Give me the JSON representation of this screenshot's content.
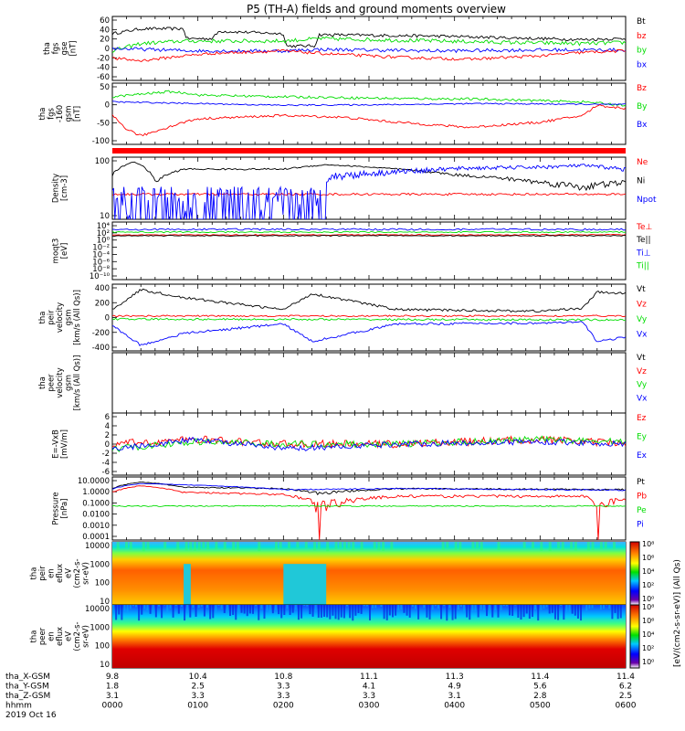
{
  "title": "P5 (TH-A) fields and ground moments overview",
  "panels": [
    {
      "id": "fgs",
      "ylabels": [
        "tha",
        "fgs",
        "gse",
        "[nT]"
      ],
      "yticks": [
        "60",
        "40",
        "20",
        "0",
        "-20",
        "-40",
        "-60"
      ],
      "legend": [
        {
          "t": "Bt",
          "c": "#000000"
        },
        {
          "t": "bz",
          "c": "#ff0000"
        },
        {
          "t": "by",
          "c": "#00dd00"
        },
        {
          "t": "bx",
          "c": "#0000ff"
        }
      ]
    },
    {
      "id": "fgs-gsm",
      "ylabels": [
        "tha",
        "fgs",
        "-160",
        "gsm",
        "[nT]"
      ],
      "yticks": [
        "50",
        "0",
        "-50",
        "-100"
      ],
      "legend": [
        {
          "t": "Bz",
          "c": "#ff0000"
        },
        {
          "t": "By",
          "c": "#00dd00"
        },
        {
          "t": "Bx",
          "c": "#0000ff"
        }
      ]
    },
    {
      "id": "density",
      "ylabels": [
        "Density",
        "[cm-3]"
      ],
      "yticks": [
        "100",
        "10"
      ],
      "legend": [
        {
          "t": "Ne",
          "c": "#ff0000"
        },
        {
          "t": "Ni",
          "c": "#000000"
        },
        {
          "t": "Npot",
          "c": "#0000ff"
        }
      ]
    },
    {
      "id": "temp",
      "ylabels": [
        "moqt3",
        "[eV]"
      ],
      "yticks": [
        "10⁴",
        "10²",
        "10⁰",
        "10⁻²",
        "10⁻⁴",
        "10⁻⁶",
        "10⁻⁸",
        "10⁻¹⁰"
      ],
      "legend": [
        {
          "t": "Te⊥",
          "c": "#ff0000"
        },
        {
          "t": "Te||",
          "c": "#000000"
        },
        {
          "t": "Ti⊥",
          "c": "#0000ff"
        },
        {
          "t": "Ti||",
          "c": "#00dd00"
        }
      ]
    },
    {
      "id": "peir-vel",
      "ylabels": [
        "tha",
        "peir",
        "velocity",
        "gsm",
        "[km/s (All Qs)]"
      ],
      "yticks": [
        "400",
        "200",
        "0",
        "-200",
        "-400"
      ],
      "legend": [
        {
          "t": "Vt",
          "c": "#000000"
        },
        {
          "t": "Vz",
          "c": "#ff0000"
        },
        {
          "t": "Vy",
          "c": "#00dd00"
        },
        {
          "t": "Vx",
          "c": "#0000ff"
        }
      ]
    },
    {
      "id": "peer-vel",
      "ylabels": [
        "tha",
        "peer",
        "velocity",
        "gsm",
        "[km/s (All Qs)]"
      ],
      "yticks": [],
      "legend": [
        {
          "t": "Vt",
          "c": "#000000"
        },
        {
          "t": "Vz",
          "c": "#ff0000"
        },
        {
          "t": "Vy",
          "c": "#00dd00"
        },
        {
          "t": "Vx",
          "c": "#0000ff"
        }
      ]
    },
    {
      "id": "efield",
      "ylabels": [
        "E=-VxB",
        "[mV/m]"
      ],
      "yticks": [
        "6",
        "4",
        "2",
        "0",
        "-2",
        "-4",
        "-6"
      ],
      "legend": [
        {
          "t": "Ez",
          "c": "#ff0000"
        },
        {
          "t": "Ey",
          "c": "#00dd00"
        },
        {
          "t": "Ex",
          "c": "#0000ff"
        }
      ]
    },
    {
      "id": "pressure",
      "ylabels": [
        "Pressure",
        "[nPa]"
      ],
      "yticks": [
        "10.0000",
        "1.0000",
        "0.1000",
        "0.0100",
        "0.0010",
        "0.0001"
      ],
      "legend": [
        {
          "t": "Pt",
          "c": "#000000"
        },
        {
          "t": "Pb",
          "c": "#ff0000"
        },
        {
          "t": "Pe",
          "c": "#00dd00"
        },
        {
          "t": "Pi",
          "c": "#0000ff"
        }
      ]
    },
    {
      "id": "peir-spec",
      "ylabels": [
        "tha",
        "peir",
        "en",
        "eflux",
        "eV",
        "(cm2-s-",
        "sr-eV)"
      ],
      "yticks": [
        "10000",
        "1000",
        "100",
        "10"
      ],
      "legend": []
    },
    {
      "id": "peer-spec",
      "ylabels": [
        "tha",
        "peer",
        "en",
        "eflux",
        "eV",
        "(cm2-s-",
        "sr-eV)"
      ],
      "yticks": [
        "10000",
        "1000",
        "100",
        "10"
      ],
      "legend": []
    }
  ],
  "colorbar": {
    "label": "[eV/(cm2-s-sr-eV)] (All Qs)",
    "ticks_top": [
      "10⁸",
      "10⁶",
      "10⁴",
      "10²",
      "10⁰"
    ],
    "ticks_bottom": [
      "10⁸",
      "10⁶",
      "10⁴",
      "10²",
      "10⁰"
    ]
  },
  "xaxis": {
    "rows": [
      {
        "label": "tha_X-GSM",
        "values": [
          "9.8",
          "10.4",
          "10.8",
          "11.1",
          "11.3",
          "11.4",
          "11.4"
        ]
      },
      {
        "label": "tha_Y-GSM",
        "values": [
          "1.8",
          "2.5",
          "3.3",
          "4.1",
          "4.9",
          "5.6",
          "6.2"
        ]
      },
      {
        "label": "tha_Z-GSM",
        "values": [
          "3.1",
          "3.3",
          "3.3",
          "3.3",
          "3.1",
          "2.8",
          "2.5"
        ]
      },
      {
        "label": "hhmm",
        "values": [
          "0000",
          "0100",
          "0200",
          "0300",
          "0400",
          "0500",
          "0600"
        ]
      }
    ],
    "date": "2019 Oct 16"
  },
  "chart_data": {
    "type": "line",
    "title": "P5 (TH-A) fields and ground moments overview",
    "x": [
      "0000",
      "0100",
      "0200",
      "0300",
      "0400",
      "0500",
      "0600"
    ],
    "xlabel": "hhmm",
    "panels": [
      {
        "name": "tha fgs gse",
        "unit": "nT",
        "ylim": [
          -60,
          60
        ],
        "series": [
          {
            "name": "Bt",
            "values": [
              32,
              30,
              35,
              28,
              22,
              22,
              25
            ]
          },
          {
            "name": "bz",
            "values": [
              -10,
              -2,
              -5,
              -12,
              -18,
              -8,
              -5
            ]
          },
          {
            "name": "by",
            "values": [
              12,
              15,
              20,
              18,
              12,
              10,
              12
            ]
          },
          {
            "name": "bx",
            "values": [
              -5,
              -8,
              0,
              -3,
              -5,
              -3,
              -2
            ]
          }
        ]
      },
      {
        "name": "tha fgs gsm",
        "unit": "nT",
        "ylim": [
          -120,
          50
        ],
        "series": [
          {
            "name": "Bz",
            "values": [
              -40,
              -38,
              -38,
              -40,
              -55,
              -55,
              -15
            ]
          },
          {
            "name": "By",
            "values": [
              25,
              25,
              10,
              10,
              5,
              5,
              -10
            ]
          },
          {
            "name": "Bx",
            "values": [
              -3,
              -10,
              -10,
              -10,
              -5,
              -5,
              -10
            ]
          }
        ]
      },
      {
        "name": "Density",
        "unit": "cm-3",
        "ylim": [
          1,
          300
        ],
        "series": [
          {
            "name": "Ne",
            "values": [
              10,
              10,
              11,
              11,
              11,
              10,
              10
            ]
          },
          {
            "name": "Ni",
            "values": [
              100,
              100,
              100,
              50,
              30,
              25,
              30
            ]
          },
          {
            "name": "Npot",
            "values": [
              null,
              null,
              null,
              70,
              110,
              110,
              80
            ]
          }
        ]
      },
      {
        "name": "peir velocity gsm",
        "unit": "km/s",
        "ylim": [
          -400,
          400
        ],
        "series": [
          {
            "name": "Vt",
            "values": [
              130,
              80,
              300,
              100,
              80,
              50,
              300
            ]
          },
          {
            "name": "Vz",
            "values": [
              20,
              20,
              0,
              40,
              40,
              30,
              0
            ]
          },
          {
            "name": "Vy",
            "values": [
              -20,
              -20,
              0,
              -20,
              -30,
              -30,
              -50
            ]
          },
          {
            "name": "Vx",
            "values": [
              -100,
              -60,
              -300,
              -60,
              -70,
              -20,
              -250
            ]
          }
        ]
      },
      {
        "name": "E=-VxB",
        "unit": "mV/m",
        "ylim": [
          -6,
          6
        ],
        "series": [
          {
            "name": "Ez",
            "values": [
              0,
              1,
              0,
              0,
              0.5,
              1,
              0
            ]
          },
          {
            "name": "Ey",
            "values": [
              -1,
              0.5,
              0,
              0,
              1,
              1,
              0
            ]
          },
          {
            "name": "Ex",
            "values": [
              -1,
              1,
              -1,
              0,
              0.5,
              0.5,
              0
            ]
          }
        ]
      },
      {
        "name": "Pressure",
        "unit": "nPa",
        "ylim": [
          0.0001,
          10
        ],
        "series": [
          {
            "name": "Pt",
            "values": [
              1,
              1,
              1,
              1,
              1,
              1,
              1
            ]
          },
          {
            "name": "Pb",
            "values": [
              0.4,
              0.3,
              0.5,
              0.4,
              0.4,
              0.3,
              0.1
            ]
          },
          {
            "name": "Pe",
            "values": [
              0.05,
              0.06,
              0.05,
              0.05,
              0.05,
              0.05,
              0.05
            ]
          },
          {
            "name": "Pi",
            "values": [
              1,
              1,
              1,
              0.6,
              0.5,
              0.5,
              0.5
            ]
          }
        ]
      }
    ]
  }
}
